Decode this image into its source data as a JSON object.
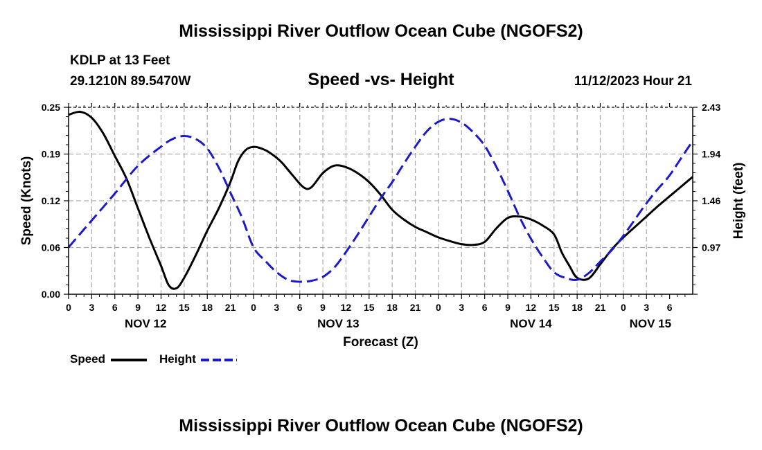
{
  "header": {
    "title": "Mississippi River Outflow Ocean Cube (NGOFS2)",
    "station": "KDLP at 13 Feet",
    "coords": "29.1210N  89.5470W",
    "subtitle": "Speed -vs- Height",
    "datetime": "11/12/2023 Hour 21"
  },
  "footer": {
    "title": "Mississippi River Outflow Ocean Cube (NGOFS2)"
  },
  "legend": {
    "speed_label": "Speed",
    "height_label": "Height"
  },
  "colors": {
    "speed": "#000000",
    "height": "#1a1acc",
    "grid": "#aaaaaa"
  },
  "chart_data": {
    "type": "line",
    "title": "Speed -vs- Height",
    "xlabel": "Forecast (Z)",
    "ylabel": "Speed (Knots)",
    "y2label": "Height (feet)",
    "xlim": [
      0,
      81
    ],
    "ylim": [
      0,
      0.25
    ],
    "y2lim": [
      0.48,
      2.43
    ],
    "y_ticks": [
      "0.00",
      "0.06",
      "0.12",
      "0.19",
      "0.25"
    ],
    "y2_ticks": [
      "0.48",
      "0.97",
      "1.46",
      "1.94",
      "2.43"
    ],
    "y2_tick_labels_shown": [
      "0.97",
      "1.46",
      "1.94",
      "2.43"
    ],
    "x_tick_labels": [
      "0",
      "3",
      "6",
      "9",
      "12",
      "15",
      "18",
      "21",
      "0",
      "3",
      "6",
      "9",
      "12",
      "15",
      "18",
      "21",
      "0",
      "3",
      "6",
      "9",
      "12",
      "15",
      "18",
      "21",
      "0",
      "3",
      "6"
    ],
    "day_labels": [
      {
        "label": "NOV 12",
        "hour": 10.0
      },
      {
        "label": "NOV 13",
        "hour": 35.0
      },
      {
        "label": "NOV 14",
        "hour": 60.0
      },
      {
        "label": "NOV 15",
        "hour": 75.5
      }
    ],
    "series": [
      {
        "name": "Speed",
        "axis": "left",
        "dash": "solid",
        "x": [
          0,
          1.5,
          3,
          4.5,
          6,
          7.5,
          9,
          10.5,
          12,
          13,
          14,
          15,
          16.5,
          18,
          19.5,
          21,
          22,
          23,
          24,
          25,
          26,
          27.5,
          29,
          30.5,
          31.5,
          33,
          34.5,
          36,
          37.5,
          39,
          40.5,
          42,
          43.5,
          45,
          46.5,
          48,
          49.5,
          51,
          52.5,
          54,
          55.5,
          57,
          58.5,
          60,
          61.5,
          63,
          64,
          65,
          66,
          67.5,
          69,
          70.5,
          72,
          73.5,
          75,
          76.5,
          78,
          79.5,
          81
        ],
        "values": [
          0.24,
          0.244,
          0.236,
          0.215,
          0.185,
          0.155,
          0.115,
          0.075,
          0.038,
          0.012,
          0.008,
          0.022,
          0.052,
          0.085,
          0.115,
          0.15,
          0.178,
          0.193,
          0.197,
          0.195,
          0.19,
          0.178,
          0.16,
          0.143,
          0.143,
          0.162,
          0.172,
          0.17,
          0.162,
          0.15,
          0.133,
          0.113,
          0.1,
          0.09,
          0.083,
          0.076,
          0.071,
          0.067,
          0.066,
          0.07,
          0.088,
          0.102,
          0.104,
          0.1,
          0.092,
          0.08,
          0.056,
          0.038,
          0.022,
          0.021,
          0.04,
          0.06,
          0.076,
          0.09,
          0.104,
          0.118,
          0.131,
          0.144,
          0.157
        ]
      },
      {
        "name": "Height",
        "axis": "right",
        "dash": "dashed",
        "x": [
          0,
          3,
          6,
          9,
          12,
          13.5,
          15,
          16.5,
          18,
          19.5,
          21,
          22.5,
          24,
          25.5,
          27,
          28.5,
          30,
          31.5,
          33,
          34.5,
          36,
          37.5,
          39,
          40.5,
          42,
          43.5,
          45,
          46.5,
          48,
          49.5,
          51,
          52.5,
          54,
          55.5,
          57,
          58.5,
          60,
          61.5,
          63,
          64.5,
          66,
          67.5,
          69,
          70.5,
          72,
          73.5,
          75,
          76.5,
          78,
          79.5,
          81
        ],
        "values": [
          0.97,
          1.25,
          1.53,
          1.82,
          2.02,
          2.1,
          2.13,
          2.1,
          2.0,
          1.8,
          1.54,
          1.28,
          0.97,
          0.83,
          0.71,
          0.63,
          0.61,
          0.62,
          0.66,
          0.76,
          0.92,
          1.1,
          1.29,
          1.48,
          1.65,
          1.84,
          2.02,
          2.18,
          2.28,
          2.31,
          2.27,
          2.17,
          2.03,
          1.81,
          1.56,
          1.29,
          1.06,
          0.87,
          0.71,
          0.65,
          0.63,
          0.7,
          0.82,
          0.94,
          1.09,
          1.26,
          1.43,
          1.58,
          1.72,
          1.9,
          2.08
        ]
      }
    ]
  }
}
